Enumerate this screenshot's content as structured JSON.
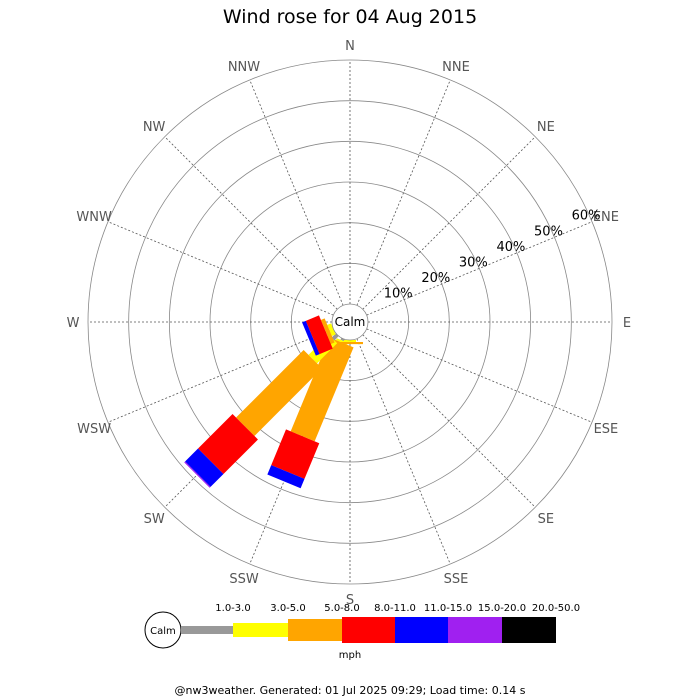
{
  "chart_data": {
    "type": "wind-rose",
    "title": "Wind rose for 04 Aug 2015",
    "directions": [
      "N",
      "NNE",
      "NE",
      "ENE",
      "E",
      "ESE",
      "SE",
      "SSE",
      "S",
      "SSW",
      "SW",
      "WSW",
      "W",
      "WNW",
      "NW",
      "NNW"
    ],
    "radial_ticks": [
      "10%",
      "20%",
      "30%",
      "40%",
      "50%",
      "60%"
    ],
    "radial_max": 60,
    "calm_label": "Calm",
    "bins": [
      {
        "label": "1.0-3.0",
        "color": "#999999"
      },
      {
        "label": "3.0-5.0",
        "color": "#ffff00"
      },
      {
        "label": "5.0-8.0",
        "color": "#ffa500"
      },
      {
        "label": "8.0-11.0",
        "color": "#ff0000"
      },
      {
        "label": "11.0-15.0",
        "color": "#0000ff"
      },
      {
        "label": "15.0-20.0",
        "color": "#a020f0"
      },
      {
        "label": "20.0-50.0",
        "color": "#000000"
      }
    ],
    "unit": "mph",
    "series": [
      {
        "direction": "SSW",
        "values": [
          0.5,
          0.5,
          25.0,
          9.5,
          2.5,
          0,
          0
        ]
      },
      {
        "direction": "SW",
        "values": [
          1.5,
          7.0,
          23.5,
          12.0,
          4.5,
          0.3,
          0
        ]
      },
      {
        "direction": "WSW",
        "values": [
          0,
          1.0,
          1.0,
          3.5,
          1.0,
          0,
          0
        ]
      },
      {
        "direction": "S",
        "values": [
          0,
          0.5,
          0.5,
          0,
          0,
          0,
          0
        ]
      }
    ]
  },
  "footer": "@nw3weather. Generated: 01 Jul 2025 09:29; Load time: 0.14 s"
}
